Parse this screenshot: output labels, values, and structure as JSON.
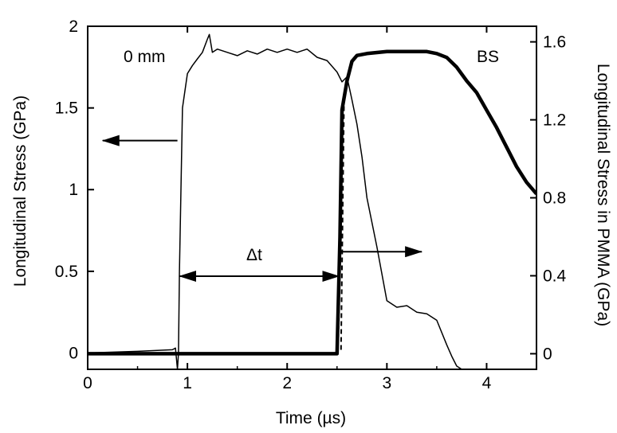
{
  "chart_data": {
    "type": "line",
    "title": "",
    "xlabel": "Time (µs)",
    "ylabel_left": "Longitudinal Stress (GPa)",
    "ylabel_right": "Longitudinal Stress in PMMA (GPa)",
    "xlim": [
      0,
      4.5
    ],
    "ylim_left": [
      -0.1,
      2.0
    ],
    "ylim_right": [
      -0.08,
      1.68
    ],
    "x_ticks": [
      0,
      1,
      2,
      3,
      4
    ],
    "x_tick_labels": [
      "0",
      "1",
      "2",
      "3",
      "4"
    ],
    "y_left_ticks": [
      0,
      0.5,
      1,
      1.5,
      2
    ],
    "y_left_tick_labels": [
      "0",
      "0.5",
      "1",
      "1.5",
      "2"
    ],
    "y_right_ticks": [
      0,
      0.4,
      0.8,
      1.2,
      1.6
    ],
    "y_right_tick_labels": [
      "0",
      "0.4",
      "0.8",
      "1.2",
      "1.6"
    ],
    "grid": false,
    "annotations": {
      "label_0mm": "0 mm",
      "label_bs": "BS",
      "label_dt": "Δt"
    },
    "series": [
      {
        "axis": "left",
        "style": "thin",
        "x": [
          0.0,
          0.5,
          0.85,
          0.88,
          0.9,
          0.91,
          0.92,
          0.95,
          1.0,
          1.05,
          1.1,
          1.15,
          1.2,
          1.22,
          1.25,
          1.3,
          1.4,
          1.5,
          1.6,
          1.7,
          1.8,
          1.9,
          2.0,
          2.1,
          2.2,
          2.3,
          2.4,
          2.5,
          2.55,
          2.6,
          2.65,
          2.7,
          2.75,
          2.8,
          2.9,
          3.0,
          3.1,
          3.2,
          3.3,
          3.4,
          3.5,
          3.6,
          3.65,
          3.7,
          3.75
        ],
        "y": [
          0.0,
          0.01,
          0.02,
          0.03,
          -0.1,
          0.0,
          0.5,
          1.5,
          1.71,
          1.76,
          1.8,
          1.84,
          1.92,
          1.95,
          1.84,
          1.86,
          1.84,
          1.82,
          1.85,
          1.83,
          1.86,
          1.84,
          1.86,
          1.84,
          1.86,
          1.81,
          1.79,
          1.72,
          1.66,
          1.69,
          1.55,
          1.4,
          1.2,
          0.95,
          0.65,
          0.32,
          0.28,
          0.29,
          0.25,
          0.24,
          0.2,
          0.05,
          -0.02,
          -0.08,
          -0.1
        ]
      },
      {
        "axis": "right",
        "style": "thick",
        "x": [
          0.0,
          0.5,
          1.0,
          1.5,
          2.0,
          2.5,
          2.53,
          2.55,
          2.6,
          2.65,
          2.7,
          2.8,
          3.0,
          3.2,
          3.4,
          3.5,
          3.6,
          3.7,
          3.8,
          3.9,
          4.0,
          4.1,
          4.2,
          4.3,
          4.4,
          4.5
        ],
        "y": [
          0.0,
          0.0,
          0.0,
          0.0,
          0.0,
          0.0,
          0.6,
          1.25,
          1.4,
          1.5,
          1.53,
          1.54,
          1.55,
          1.55,
          1.55,
          1.54,
          1.52,
          1.47,
          1.4,
          1.34,
          1.25,
          1.16,
          1.06,
          0.96,
          0.88,
          0.82
        ]
      }
    ]
  }
}
